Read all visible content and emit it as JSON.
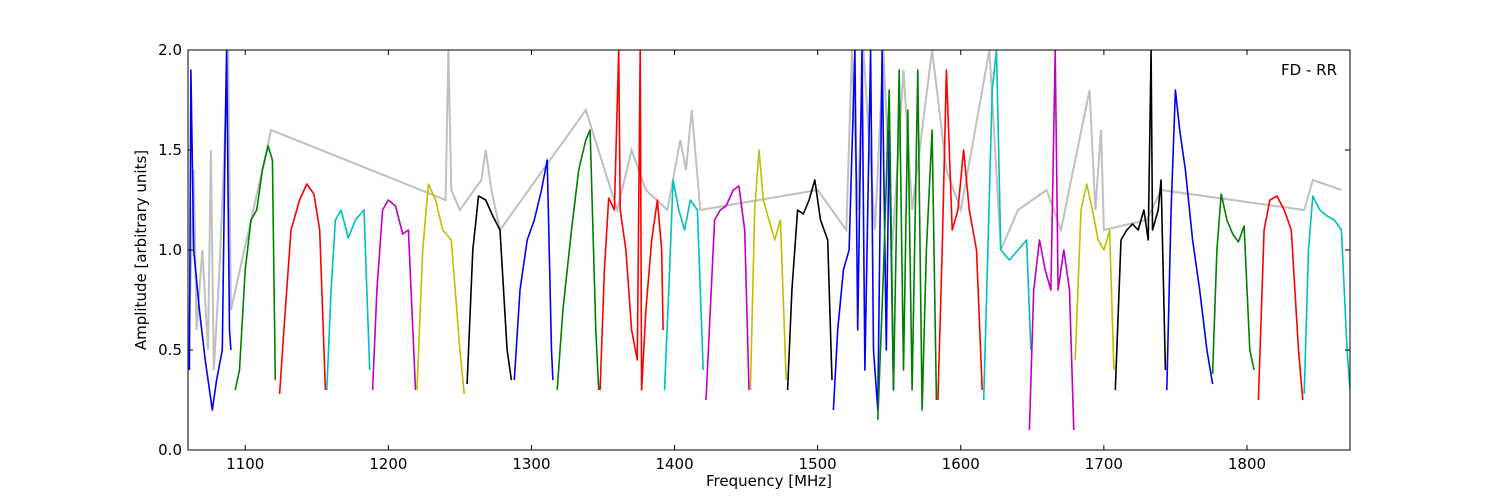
{
  "chart_data": {
    "type": "line",
    "title": "",
    "annotation": "FD - RR",
    "xlabel": "Frequency [MHz]",
    "ylabel": "Amplitude [arbitrary units]",
    "xlim": [
      1060,
      1872
    ],
    "ylim": [
      0.0,
      2.0
    ],
    "x_ticks": [
      1100,
      1200,
      1300,
      1400,
      1500,
      1600,
      1700,
      1800
    ],
    "y_ticks": [
      0.0,
      0.5,
      1.0,
      1.5,
      2.0
    ],
    "x_tick_labels": [
      "1100",
      "1200",
      "1300",
      "1400",
      "1500",
      "1600",
      "1700",
      "1800"
    ],
    "y_tick_labels": [
      "0.0",
      "0.5",
      "1.0",
      "1.5",
      "2.0"
    ],
    "grid": false,
    "legend": "none",
    "background_series": {
      "color": "#c0c0c0",
      "description_visible": false,
      "points": [
        [
          1060,
          0.4
        ],
        [
          1064,
          1.4
        ],
        [
          1066,
          0.6
        ],
        [
          1070,
          1.0
        ],
        [
          1074,
          0.5
        ],
        [
          1076,
          1.5
        ],
        [
          1078,
          0.4
        ],
        [
          1082,
          0.9
        ],
        [
          1086,
          1.6
        ],
        [
          1088,
          2.0
        ],
        [
          1090,
          0.7
        ],
        [
          1115,
          1.5
        ],
        [
          1118,
          1.6
        ],
        [
          1240,
          1.25
        ],
        [
          1242,
          2.0
        ],
        [
          1244,
          1.3
        ],
        [
          1250,
          1.2
        ],
        [
          1265,
          1.35
        ],
        [
          1268,
          1.5
        ],
        [
          1272,
          1.3
        ],
        [
          1278,
          1.1
        ],
        [
          1338,
          1.7
        ],
        [
          1360,
          1.2
        ],
        [
          1370,
          1.5
        ],
        [
          1380,
          1.3
        ],
        [
          1395,
          1.2
        ],
        [
          1404,
          1.55
        ],
        [
          1408,
          1.4
        ],
        [
          1412,
          1.7
        ],
        [
          1418,
          1.2
        ],
        [
          1500,
          1.3
        ],
        [
          1520,
          1.1
        ],
        [
          1524,
          2.0
        ],
        [
          1528,
          1.2
        ],
        [
          1532,
          2.0
        ],
        [
          1540,
          1.1
        ],
        [
          1546,
          2.0
        ],
        [
          1552,
          1.0
        ],
        [
          1560,
          1.9
        ],
        [
          1566,
          1.2
        ],
        [
          1580,
          2.0
        ],
        [
          1590,
          1.4
        ],
        [
          1600,
          1.2
        ],
        [
          1620,
          2.0
        ],
        [
          1628,
          1.0
        ],
        [
          1640,
          1.2
        ],
        [
          1660,
          1.3
        ],
        [
          1670,
          1.1
        ],
        [
          1690,
          1.8
        ],
        [
          1694,
          1.2
        ],
        [
          1698,
          1.6
        ],
        [
          1700,
          1.1
        ],
        [
          1730,
          1.15
        ],
        [
          1740,
          1.3
        ],
        [
          1840,
          1.2
        ],
        [
          1846,
          1.35
        ],
        [
          1866,
          1.3
        ]
      ]
    },
    "series": [
      {
        "color": "#0000ff",
        "points": [
          [
            1061,
            0.4
          ],
          [
            1062,
            1.9
          ],
          [
            1064,
            1.0
          ],
          [
            1068,
            0.7
          ],
          [
            1072,
            0.45
          ],
          [
            1075,
            0.3
          ],
          [
            1077,
            0.2
          ],
          [
            1080,
            0.35
          ],
          [
            1084,
            0.5
          ],
          [
            1086,
            1.6
          ],
          [
            1087,
            2.0
          ],
          [
            1089,
            0.6
          ],
          [
            1090,
            0.5
          ]
        ]
      },
      {
        "color": "#008000",
        "points": [
          [
            1093,
            0.3
          ],
          [
            1096,
            0.4
          ],
          [
            1100,
            0.9
          ],
          [
            1104,
            1.15
          ],
          [
            1108,
            1.2
          ],
          [
            1112,
            1.4
          ],
          [
            1116,
            1.52
          ],
          [
            1119,
            1.45
          ],
          [
            1121,
            0.35
          ]
        ]
      },
      {
        "color": "#ff0000",
        "points": [
          [
            1124,
            0.28
          ],
          [
            1127,
            0.6
          ],
          [
            1132,
            1.1
          ],
          [
            1138,
            1.25
          ],
          [
            1143,
            1.33
          ],
          [
            1148,
            1.28
          ],
          [
            1152,
            1.1
          ],
          [
            1156,
            0.3
          ]
        ]
      },
      {
        "color": "#00bfbf",
        "points": [
          [
            1157,
            0.3
          ],
          [
            1160,
            0.8
          ],
          [
            1163,
            1.15
          ],
          [
            1167,
            1.2
          ],
          [
            1172,
            1.06
          ],
          [
            1177,
            1.15
          ],
          [
            1183,
            1.2
          ],
          [
            1187,
            0.4
          ]
        ]
      },
      {
        "color": "#bf00bf",
        "points": [
          [
            1189,
            0.3
          ],
          [
            1192,
            0.8
          ],
          [
            1196,
            1.2
          ],
          [
            1200,
            1.25
          ],
          [
            1205,
            1.22
          ],
          [
            1210,
            1.08
          ],
          [
            1214,
            1.1
          ],
          [
            1219,
            0.3
          ]
        ]
      },
      {
        "color": "#bfbf00",
        "points": [
          [
            1220,
            0.3
          ],
          [
            1224,
            1.0
          ],
          [
            1228,
            1.33
          ],
          [
            1233,
            1.25
          ],
          [
            1238,
            1.1
          ],
          [
            1244,
            1.05
          ],
          [
            1250,
            0.5
          ],
          [
            1253,
            0.28
          ]
        ]
      },
      {
        "color": "#000000",
        "points": [
          [
            1255,
            0.33
          ],
          [
            1259,
            1.0
          ],
          [
            1263,
            1.27
          ],
          [
            1268,
            1.25
          ],
          [
            1273,
            1.17
          ],
          [
            1278,
            1.1
          ],
          [
            1283,
            0.5
          ],
          [
            1286,
            0.35
          ]
        ]
      },
      {
        "color": "#0000ff",
        "points": [
          [
            1288,
            0.35
          ],
          [
            1292,
            0.8
          ],
          [
            1297,
            1.05
          ],
          [
            1302,
            1.15
          ],
          [
            1307,
            1.3
          ],
          [
            1311,
            1.45
          ],
          [
            1314,
            0.5
          ],
          [
            1315,
            0.35
          ]
        ]
      },
      {
        "color": "#008000",
        "points": [
          [
            1318,
            0.3
          ],
          [
            1322,
            0.7
          ],
          [
            1328,
            1.1
          ],
          [
            1333,
            1.4
          ],
          [
            1338,
            1.55
          ],
          [
            1341,
            1.6
          ],
          [
            1345,
            0.6
          ],
          [
            1347,
            0.3
          ]
        ]
      },
      {
        "color": "#ff0000",
        "points": [
          [
            1348,
            0.3
          ],
          [
            1351,
            0.9
          ],
          [
            1354,
            1.26
          ],
          [
            1358,
            1.2
          ],
          [
            1361,
            2.0
          ],
          [
            1362,
            1.2
          ],
          [
            1366,
            1.0
          ],
          [
            1370,
            0.6
          ],
          [
            1374,
            0.45
          ],
          [
            1376,
            2.0
          ],
          [
            1377,
            0.3
          ],
          [
            1380,
            0.7
          ],
          [
            1384,
            1.05
          ],
          [
            1388,
            1.25
          ],
          [
            1391,
            1.0
          ],
          [
            1392,
            0.6
          ]
        ]
      },
      {
        "color": "#00bfbf",
        "points": [
          [
            1393,
            0.3
          ],
          [
            1396,
            0.8
          ],
          [
            1399,
            1.35
          ],
          [
            1403,
            1.2
          ],
          [
            1407,
            1.1
          ],
          [
            1411,
            1.25
          ],
          [
            1416,
            1.2
          ],
          [
            1420,
            0.4
          ]
        ]
      },
      {
        "color": "#bf00bf",
        "points": [
          [
            1422,
            0.25
          ],
          [
            1425,
            0.7
          ],
          [
            1428,
            1.15
          ],
          [
            1432,
            1.2
          ],
          [
            1436,
            1.22
          ],
          [
            1441,
            1.3
          ],
          [
            1445,
            1.32
          ],
          [
            1449,
            1.1
          ],
          [
            1452,
            0.3
          ]
        ]
      },
      {
        "color": "#bfbf00",
        "points": [
          [
            1453,
            0.3
          ],
          [
            1456,
            1.2
          ],
          [
            1459,
            1.5
          ],
          [
            1462,
            1.25
          ],
          [
            1466,
            1.15
          ],
          [
            1470,
            1.05
          ],
          [
            1474,
            1.15
          ],
          [
            1478,
            0.35
          ]
        ]
      },
      {
        "color": "#000000",
        "points": [
          [
            1479,
            0.3
          ],
          [
            1482,
            0.8
          ],
          [
            1486,
            1.2
          ],
          [
            1490,
            1.18
          ],
          [
            1494,
            1.25
          ],
          [
            1498,
            1.35
          ],
          [
            1502,
            1.15
          ],
          [
            1507,
            1.05
          ],
          [
            1510,
            0.35
          ]
        ]
      },
      {
        "color": "#0000ff",
        "points": [
          [
            1511,
            0.2
          ],
          [
            1514,
            0.6
          ],
          [
            1518,
            0.9
          ],
          [
            1522,
            1.0
          ],
          [
            1526,
            2.0
          ],
          [
            1528,
            0.6
          ],
          [
            1531,
            2.0
          ],
          [
            1533,
            0.4
          ],
          [
            1537,
            2.0
          ],
          [
            1539,
            0.5
          ],
          [
            1542,
            0.2
          ],
          [
            1545,
            2.0
          ],
          [
            1548,
            0.5
          ],
          [
            1550,
            1.6
          ],
          [
            1553,
            0.3
          ]
        ]
      },
      {
        "color": "#008000",
        "points": [
          [
            1542,
            0.15
          ],
          [
            1546,
            0.9
          ],
          [
            1550,
            1.8
          ],
          [
            1553,
            0.3
          ],
          [
            1557,
            1.9
          ],
          [
            1560,
            0.4
          ],
          [
            1563,
            1.7
          ],
          [
            1566,
            0.3
          ],
          [
            1570,
            1.9
          ],
          [
            1573,
            0.2
          ],
          [
            1576,
            1.0
          ],
          [
            1580,
            1.6
          ],
          [
            1583,
            0.25
          ]
        ]
      },
      {
        "color": "#ff0000",
        "points": [
          [
            1584,
            0.25
          ],
          [
            1587,
            1.0
          ],
          [
            1590,
            1.9
          ],
          [
            1594,
            1.1
          ],
          [
            1598,
            1.2
          ],
          [
            1602,
            1.5
          ],
          [
            1606,
            1.2
          ],
          [
            1611,
            1.0
          ],
          [
            1615,
            0.3
          ]
        ]
      },
      {
        "color": "#00bfbf",
        "points": [
          [
            1616,
            0.25
          ],
          [
            1619,
            1.0
          ],
          [
            1622,
            1.8
          ],
          [
            1625,
            2.0
          ],
          [
            1628,
            1.0
          ],
          [
            1634,
            0.95
          ],
          [
            1640,
            1.0
          ],
          [
            1646,
            1.05
          ],
          [
            1649,
            0.5
          ]
        ]
      },
      {
        "color": "#bf00bf",
        "points": [
          [
            1648,
            0.1
          ],
          [
            1651,
            0.8
          ],
          [
            1655,
            1.05
          ],
          [
            1659,
            0.9
          ],
          [
            1663,
            0.8
          ],
          [
            1666,
            2.0
          ],
          [
            1668,
            0.8
          ],
          [
            1672,
            1.0
          ],
          [
            1676,
            0.8
          ],
          [
            1679,
            0.1
          ]
        ]
      },
      {
        "color": "#bfbf00",
        "points": [
          [
            1680,
            0.45
          ],
          [
            1684,
            1.2
          ],
          [
            1688,
            1.33
          ],
          [
            1692,
            1.2
          ],
          [
            1696,
            1.05
          ],
          [
            1700,
            1.0
          ],
          [
            1704,
            1.1
          ],
          [
            1707,
            0.4
          ]
        ]
      },
      {
        "color": "#000000",
        "points": [
          [
            1708,
            0.3
          ],
          [
            1712,
            1.05
          ],
          [
            1716,
            1.1
          ],
          [
            1720,
            1.13
          ],
          [
            1724,
            1.1
          ],
          [
            1728,
            1.2
          ],
          [
            1731,
            1.05
          ],
          [
            1733,
            2.0
          ],
          [
            1734,
            1.1
          ],
          [
            1738,
            1.2
          ],
          [
            1740,
            1.35
          ],
          [
            1743,
            0.4
          ]
        ]
      },
      {
        "color": "#0000ff",
        "points": [
          [
            1744,
            0.3
          ],
          [
            1747,
            1.2
          ],
          [
            1750,
            1.8
          ],
          [
            1753,
            1.6
          ],
          [
            1757,
            1.4
          ],
          [
            1762,
            1.05
          ],
          [
            1767,
            0.8
          ],
          [
            1772,
            0.5
          ],
          [
            1776,
            0.33
          ]
        ]
      },
      {
        "color": "#008000",
        "points": [
          [
            1776,
            0.38
          ],
          [
            1779,
            1.0
          ],
          [
            1782,
            1.28
          ],
          [
            1786,
            1.15
          ],
          [
            1790,
            1.08
          ],
          [
            1794,
            1.04
          ],
          [
            1798,
            1.12
          ],
          [
            1802,
            0.5
          ],
          [
            1805,
            0.4
          ]
        ]
      },
      {
        "color": "#ff0000",
        "points": [
          [
            1808,
            0.25
          ],
          [
            1812,
            1.1
          ],
          [
            1816,
            1.25
          ],
          [
            1821,
            1.27
          ],
          [
            1826,
            1.2
          ],
          [
            1831,
            1.1
          ],
          [
            1836,
            0.5
          ],
          [
            1839,
            0.25
          ]
        ]
      },
      {
        "color": "#00bfbf",
        "points": [
          [
            1840,
            0.28
          ],
          [
            1843,
            1.0
          ],
          [
            1846,
            1.27
          ],
          [
            1851,
            1.2
          ],
          [
            1856,
            1.17
          ],
          [
            1861,
            1.15
          ],
          [
            1866,
            1.1
          ],
          [
            1870,
            0.5
          ],
          [
            1872,
            0.3
          ]
        ]
      }
    ]
  }
}
